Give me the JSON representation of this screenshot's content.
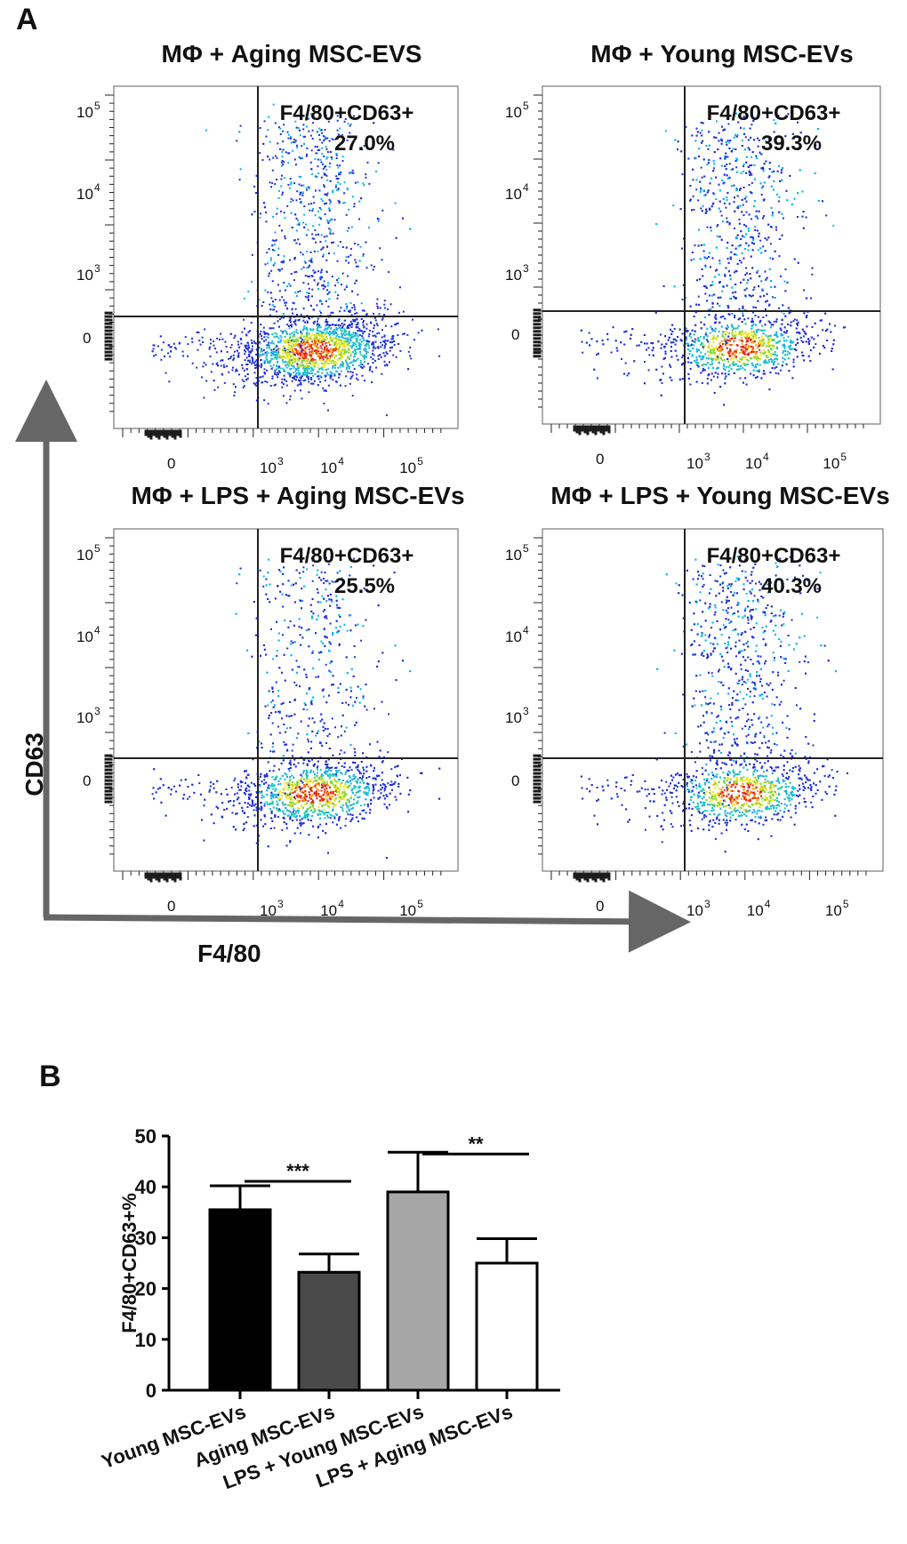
{
  "panel_a": {
    "letter": "A",
    "x_axis_title": "F4/80",
    "y_axis_title": "CD63",
    "tick_labels": {
      "zero": "0",
      "base": "10",
      "exponents": [
        "3",
        "4",
        "5"
      ]
    },
    "plots": [
      {
        "title": "MΦ + Aging MSC-EVS",
        "gate_label": "F4/80+CD63+",
        "percent": "27.0%",
        "value": 27.0
      },
      {
        "title": "MΦ + Young MSC-EVs",
        "gate_label": "F4/80+CD63+",
        "percent": "39.3%",
        "value": 39.3
      },
      {
        "title": "MΦ + LPS + Aging MSC-EVs",
        "gate_label": "F4/80+CD63+",
        "percent": "25.5%",
        "value": 25.5
      },
      {
        "title": "MΦ + LPS + Young MSC-EVs",
        "gate_label": "F4/80+CD63+",
        "percent": "40.3%",
        "value": 40.3
      }
    ]
  },
  "panel_b": {
    "letter": "B"
  },
  "chart_data": {
    "type": "bar",
    "title": "",
    "xlabel": "",
    "ylabel": "F4/80+CD63+%",
    "ylim": [
      0,
      50
    ],
    "yticks": [
      0,
      10,
      20,
      30,
      40,
      50
    ],
    "categories": [
      "Young MSC-EVs",
      "Aging MSC-EVs",
      "LPS + Young MSC-EVs",
      "LPS + Aging MSC-EVs"
    ],
    "values": [
      35.5,
      23.2,
      39.0,
      25.0
    ],
    "errors": [
      4.7,
      3.6,
      7.8,
      4.8
    ],
    "bar_colors": [
      "#000000",
      "#4a4a4a",
      "#a6a6a6",
      "#ffffff"
    ],
    "significance": [
      {
        "from": 0,
        "to": 1,
        "label": "***"
      },
      {
        "from": 2,
        "to": 3,
        "label": "**"
      }
    ]
  }
}
